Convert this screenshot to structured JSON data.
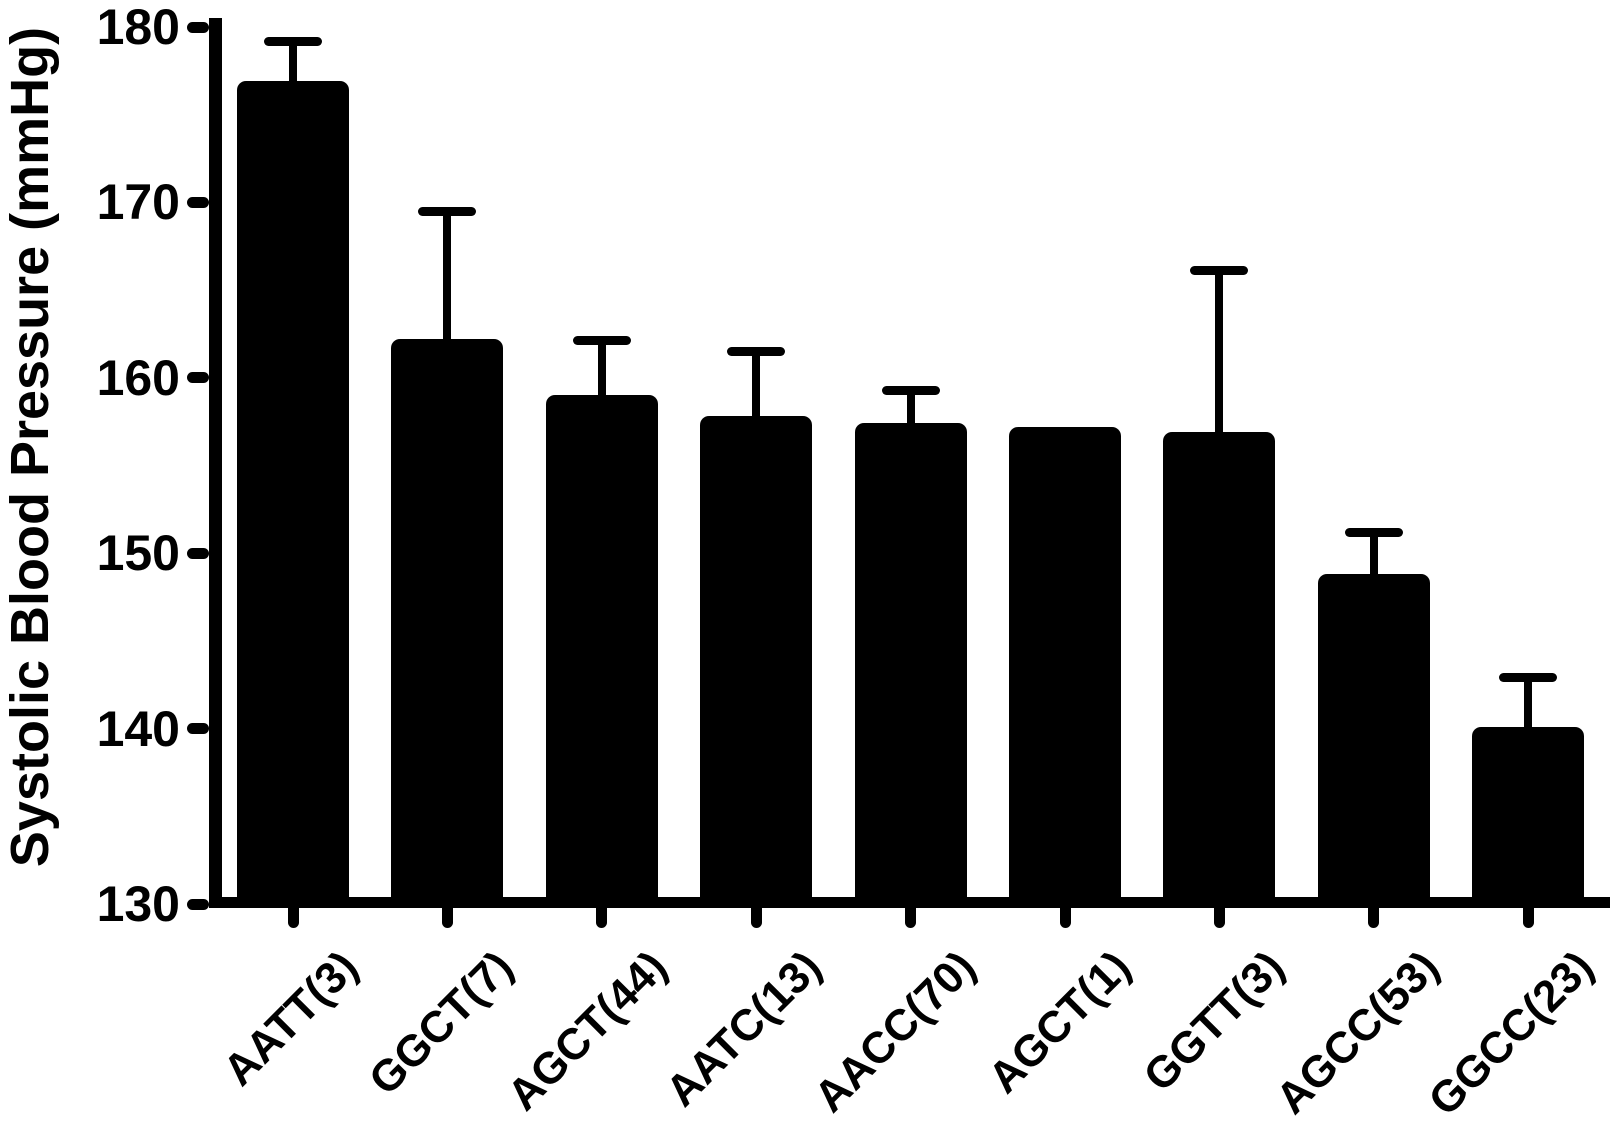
{
  "chart_data": {
    "type": "bar",
    "title": "",
    "xlabel": "",
    "ylabel": "Systolic Blood Pressure (mmHg)",
    "ylim": [
      130,
      180
    ],
    "yticks": [
      130,
      140,
      150,
      160,
      170,
      180
    ],
    "grid": false,
    "legend_position": "none",
    "bar_color": "#000000",
    "background_color": "#ffffff",
    "error_direction": "upper-only",
    "categories": [
      "AATT(3)",
      "GGCT(7)",
      "AGCT(44)",
      "AATC(13)",
      "AACC(70)",
      "AGCT(1)",
      "GGTT(3)",
      "AGCC(53)",
      "GGCC(23)"
    ],
    "values": [
      176.9,
      162.2,
      159.0,
      157.8,
      157.4,
      157.2,
      156.9,
      148.8,
      140.1
    ],
    "errors_plus": [
      2.3,
      7.3,
      3.1,
      3.7,
      1.9,
      0,
      9.2,
      2.4,
      2.8
    ]
  }
}
